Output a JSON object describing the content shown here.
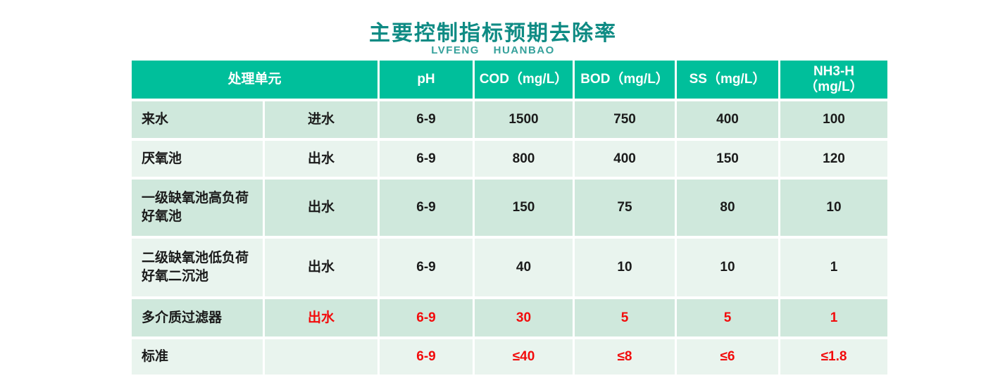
{
  "colors": {
    "header_bg": "#00bf9b",
    "row_dark": "#cfe8dc",
    "row_light": "#e9f4ee",
    "title_text": "#0f8b84",
    "subtitle_text": "#35a19b",
    "body_text": "#1b1b1b",
    "highlight_red": "#f20c0c"
  },
  "chart_data": {
    "type": "table",
    "title": "主要控制指标预期去除率",
    "subtitle": "LVFENG HUANBAO",
    "header": {
      "merged_unit_label": "处理单元",
      "columns": [
        {
          "label": "pH"
        },
        {
          "label": "COD（mg/L）"
        },
        {
          "label": "BOD（mg/L）"
        },
        {
          "label": "SS（mg/L）"
        },
        {
          "label": "NH3-H",
          "label2": "（mg/L）"
        }
      ]
    },
    "rows": [
      {
        "unit": "来水",
        "flow": "进水",
        "values": {
          "ph": "6-9",
          "cod": "1500",
          "bod": "750",
          "ss": "400",
          "nh3": "100"
        }
      },
      {
        "unit": "厌氧池",
        "flow": "出水",
        "values": {
          "ph": "6-9",
          "cod": "800",
          "bod": "400",
          "ss": "150",
          "nh3": "120"
        }
      },
      {
        "unit": "一级缺氧池高负荷好氧池",
        "flow": "出水",
        "values": {
          "ph": "6-9",
          "cod": "150",
          "bod": "75",
          "ss": "80",
          "nh3": "10"
        }
      },
      {
        "unit": "二级缺氧池低负荷好氧二沉池",
        "flow": "出水",
        "values": {
          "ph": "6-9",
          "cod": "40",
          "bod": "10",
          "ss": "10",
          "nh3": "1"
        }
      },
      {
        "unit": "多介质过滤器",
        "flow": "出水",
        "values": {
          "ph": "6-9",
          "cod": "30",
          "bod": "5",
          "ss": "5",
          "nh3": "1"
        }
      },
      {
        "unit": "标准",
        "flow": "",
        "values": {
          "ph": "6-9",
          "cod": "≤40",
          "bod": "≤8",
          "ss": "≤6",
          "nh3": "≤1.8"
        }
      }
    ]
  }
}
